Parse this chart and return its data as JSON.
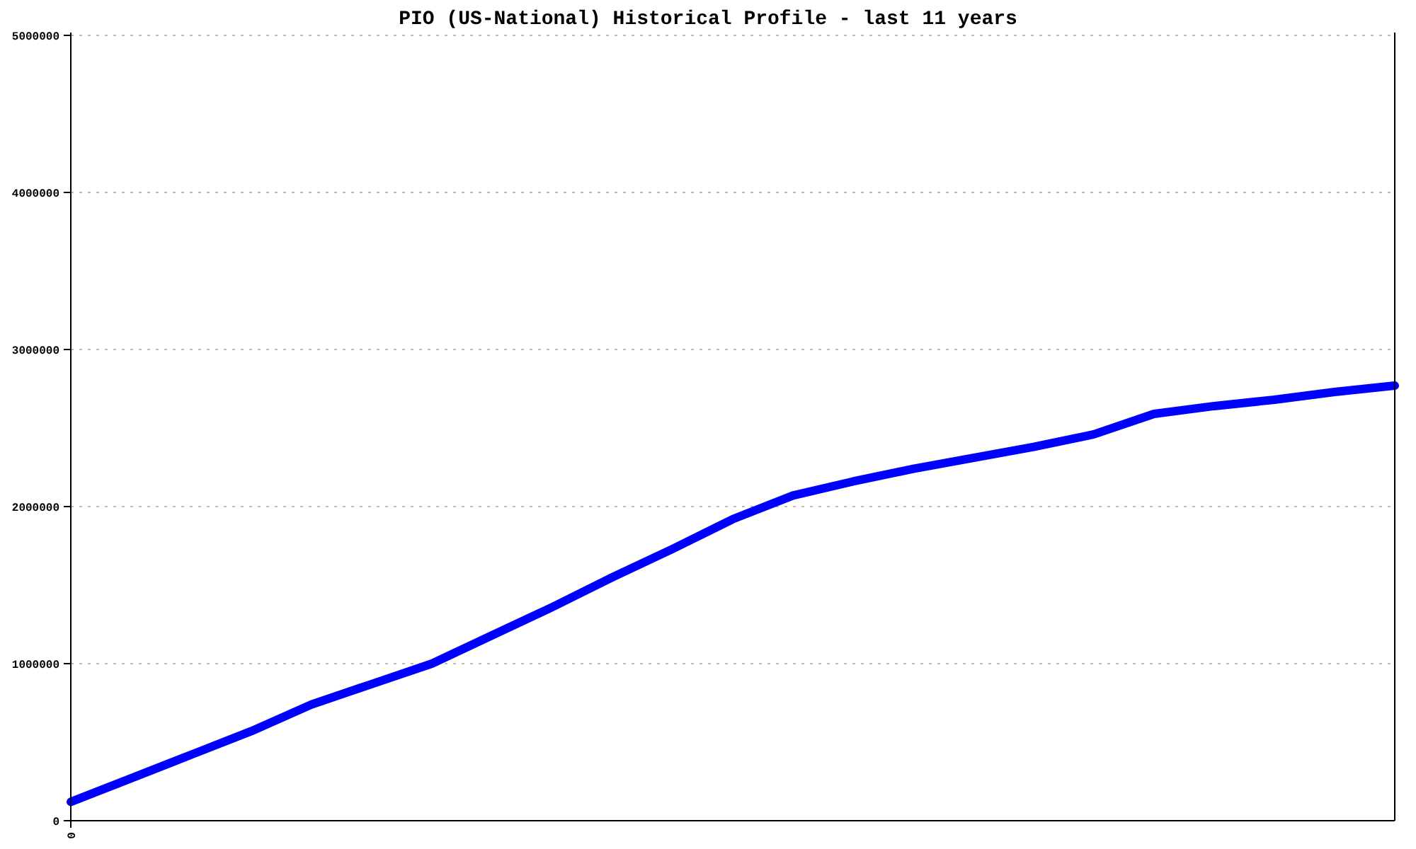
{
  "chart_data": {
    "type": "line",
    "title": "PIO (US-National) Historical Profile - last 11 years",
    "categories": [
      "0",
      null,
      null,
      null,
      null,
      null,
      null,
      null,
      null,
      null,
      null,
      null,
      null,
      null,
      null,
      null,
      null,
      null,
      null,
      null,
      null,
      null,
      null
    ],
    "series": [
      {
        "color": "#0000ff",
        "values": [
          120000,
          270000,
          420000,
          570000,
          740000,
          870000,
          1000000,
          1180000,
          1360000,
          1550000,
          1730000,
          1920000,
          2070000,
          2160000,
          2240000,
          2310000,
          2380000,
          2460000,
          2590000,
          2640000,
          2680000,
          2730000,
          2770000
        ]
      }
    ],
    "ylim": [
      0,
      5000000
    ],
    "yticks": [
      0,
      1000000,
      2000000,
      3000000,
      4000000,
      5000000
    ],
    "grid": "y",
    "line_style": "solid"
  }
}
